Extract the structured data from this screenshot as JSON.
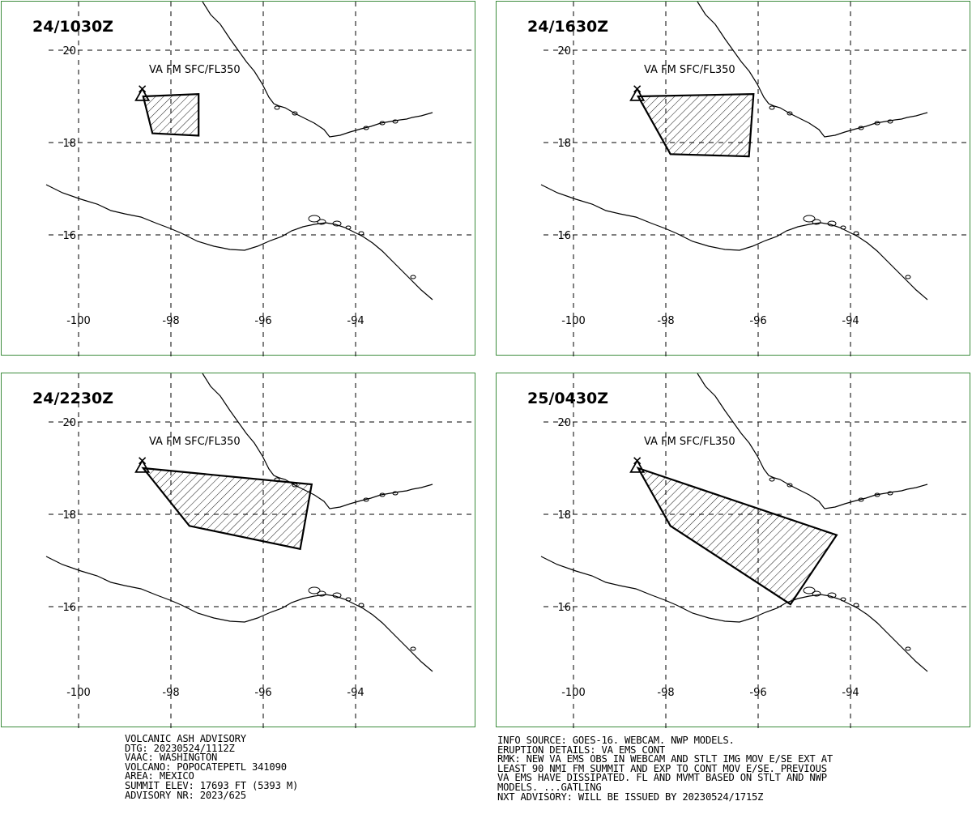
{
  "panels": [
    {
      "time": "24/1030Z",
      "label": "VA FM SFC/FL350",
      "polygon": [
        [
          -98.6,
          19.0
        ],
        [
          -97.4,
          19.05
        ],
        [
          -97.4,
          18.15
        ],
        [
          -98.4,
          18.2
        ]
      ]
    },
    {
      "time": "24/1630Z",
      "label": "VA FM SFC/FL350",
      "polygon": [
        [
          -98.6,
          19.0
        ],
        [
          -96.1,
          19.05
        ],
        [
          -96.2,
          17.7
        ],
        [
          -97.9,
          17.75
        ]
      ]
    },
    {
      "time": "24/2230Z",
      "label": "VA FM SFC/FL350",
      "polygon": [
        [
          -98.6,
          19.0
        ],
        [
          -94.95,
          18.65
        ],
        [
          -95.2,
          17.25
        ],
        [
          -97.6,
          17.75
        ]
      ]
    },
    {
      "time": "25/0430Z",
      "label": "VA FM SFC/FL350",
      "polygon": [
        [
          -98.6,
          19.0
        ],
        [
          -94.3,
          17.55
        ],
        [
          -95.3,
          16.05
        ],
        [
          -97.9,
          17.75
        ]
      ]
    }
  ],
  "axes": {
    "x_ticks": [
      "-100",
      "-98",
      "-96",
      "-94"
    ],
    "y_ticks": [
      "20",
      "18",
      "16"
    ]
  },
  "volcano_marker": {
    "lon": -98.62,
    "lat": 19.02,
    "icon": "volcano-triangle-icon"
  },
  "advisory": {
    "lines": [
      "VOLCANIC ASH ADVISORY",
      "DTG: 20230524/1112Z",
      "VAAC: WASHINGTON",
      "VOLCANO: POPOCATEPETL 341090",
      "AREA: MEXICO",
      "SUMMIT ELEV: 17693 FT (5393 M)",
      "ADVISORY NR: 2023/625"
    ]
  },
  "info": {
    "lines": [
      "INFO SOURCE: GOES-16. WEBCAM. NWP MODELS.",
      "ERUPTION DETAILS: VA EMS CONT",
      "RMK: NEW VA EMS OBS IN WEBCAM AND STLT IMG MOV E/SE EXT AT",
      "LEAST 90 NMI FM SUMMIT AND EXP TO CONT MOV E/SE. PREVIOUS",
      "VA EMS HAVE DISSIPATED. FL AND MVMT BASED ON STLT AND NWP",
      "MODELS. ...GATLING",
      "NXT ADVISORY: WILL BE ISSUED BY 20230524/1715Z"
    ]
  }
}
